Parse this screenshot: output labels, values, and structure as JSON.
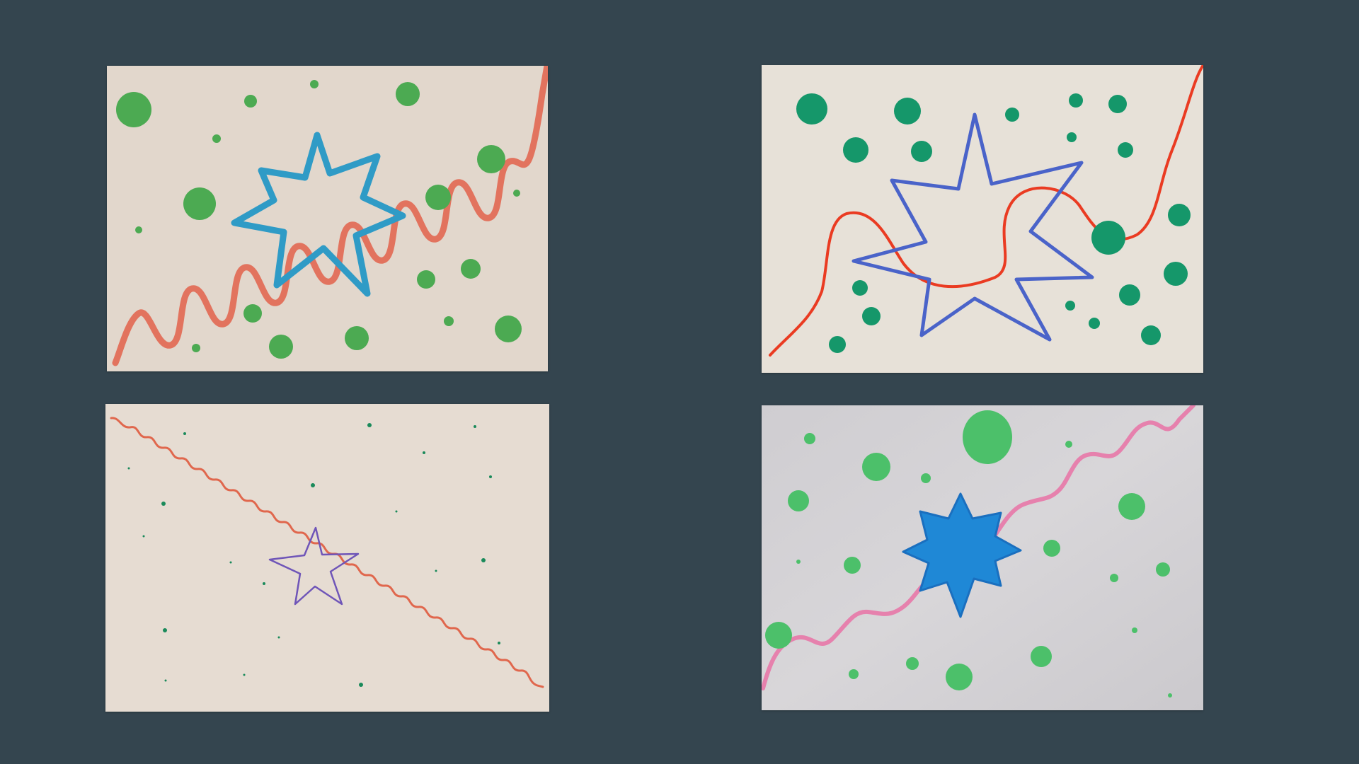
{
  "slide": {
    "background_color": "#34454f",
    "layout": "2x2 photo grid",
    "photos": [
      {
        "subject": "drawing-wavy-line-star-dots",
        "paper_color": "#e2d7cc",
        "line_color": "#e26a55",
        "star_color": "#2f9bc6",
        "dot_color": "#4caa52",
        "medium": "marker"
      },
      {
        "subject": "drawing-wavy-line-star-dots",
        "paper_color": "#e7e1d8",
        "line_color": "#ea3b22",
        "star_color": "#4a63c9",
        "dot_color": "#15976a",
        "medium": "crayon"
      },
      {
        "subject": "drawing-wavy-line-star-dots",
        "paper_color": "#e6dcd2",
        "line_color": "#e0674d",
        "star_color": "#6f55b8",
        "dot_color": "#1a8a5a",
        "medium": "fine-pen"
      },
      {
        "subject": "drawing-wavy-line-star-dots",
        "paper_color": "#d4d2d5",
        "line_color": "#e681ad",
        "star_color": "#1f88d6",
        "dot_color": "#4cc06a",
        "medium": "felt-tip"
      }
    ]
  }
}
